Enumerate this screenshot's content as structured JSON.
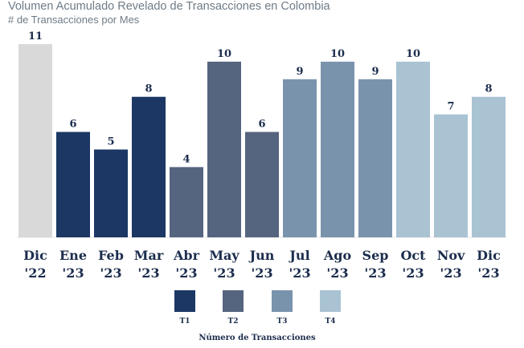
{
  "chart_data": {
    "type": "bar",
    "title": "Volumen Acumulado Revelado de Transacciones en Colombia",
    "subtitle": "# de Transacciones por Mes",
    "categories": [
      [
        "Dic",
        "'22"
      ],
      [
        "Ene",
        "'23"
      ],
      [
        "Feb",
        "'23"
      ],
      [
        "Mar",
        "'23"
      ],
      [
        "Abr",
        "'23"
      ],
      [
        "May",
        "'23"
      ],
      [
        "Jun",
        "'23"
      ],
      [
        "Jul",
        "'23"
      ],
      [
        "Ago",
        "'23"
      ],
      [
        "Sep",
        "'23"
      ],
      [
        "Oct",
        "'23"
      ],
      [
        "Nov",
        "'23"
      ],
      [
        "Dic",
        "'23"
      ]
    ],
    "values": [
      11,
      6,
      5,
      8,
      4,
      10,
      6,
      9,
      10,
      9,
      10,
      7,
      8
    ],
    "value_labels": [
      "11",
      "6",
      "5",
      "8",
      "4",
      "10",
      "6",
      "9",
      "10",
      "9",
      "10",
      "7",
      "8"
    ],
    "groups": [
      "none",
      "T1",
      "T1",
      "T1",
      "T2",
      "T2",
      "T2",
      "T3",
      "T3",
      "T3",
      "T4",
      "T4",
      "T4"
    ],
    "ylim": [
      0,
      11
    ],
    "legend": {
      "title": "Número de Transacciones",
      "placement": "bottom",
      "items": [
        {
          "label": "T1",
          "color": "#1c3764"
        },
        {
          "label": "T2",
          "color": "#55647f"
        },
        {
          "label": "T3",
          "color": "#7a93ad"
        },
        {
          "label": "T4",
          "color": "#a9c3d3"
        }
      ]
    },
    "colors": {
      "none": "#d9d9d9",
      "T1": "#1c3764",
      "T2": "#55647f",
      "T3": "#7a93ad",
      "T4": "#a9c3d3"
    },
    "grid": false
  }
}
